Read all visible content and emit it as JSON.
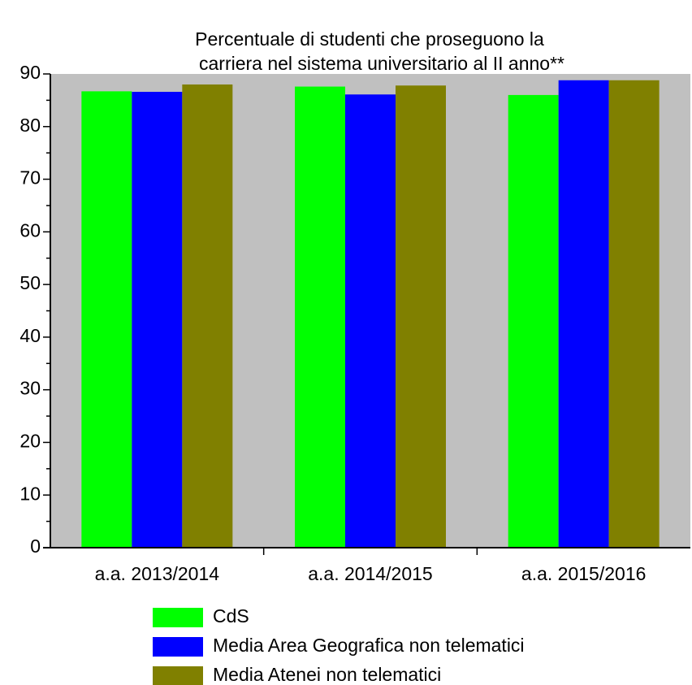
{
  "chart_data": {
    "type": "bar",
    "title": [
      "Percentuale di studenti che proseguono la",
      "carriera nel sistema universitario al II anno**"
    ],
    "categories": [
      "a.a. 2013/2014",
      "a.a. 2014/2015",
      "a.a. 2015/2016"
    ],
    "series": [
      {
        "name": "CdS",
        "color": "#00ff00",
        "values": [
          86.7,
          87.6,
          86.0
        ]
      },
      {
        "name": "Media Area Geografica non telematici",
        "color": "#0000ff",
        "values": [
          86.6,
          86.1,
          88.8
        ]
      },
      {
        "name": "Media Atenei non telematici",
        "color": "#808000",
        "values": [
          88.0,
          87.8,
          88.8
        ]
      }
    ],
    "ylim": [
      0,
      90
    ],
    "yticks": [
      0,
      10,
      20,
      30,
      40,
      50,
      60,
      70,
      80,
      90
    ],
    "plot_background": "#c0c0c0",
    "legend": "bottom"
  }
}
